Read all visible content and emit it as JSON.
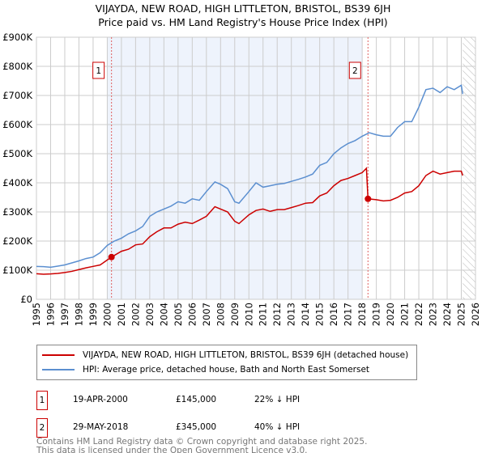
{
  "chart_data": {
    "type": "line",
    "title": "VIJAYDA, NEW ROAD, HIGH LITTLETON, BRISTOL, BS39 6JH",
    "subtitle": "Price paid vs. HM Land Registry's House Price Index (HPI)",
    "xlim": [
      1995,
      2026
    ],
    "ylim": [
      0,
      900000
    ],
    "yticks": [
      {
        "v": 0,
        "label": "£0"
      },
      {
        "v": 100000,
        "label": "£100K"
      },
      {
        "v": 200000,
        "label": "£200K"
      },
      {
        "v": 300000,
        "label": "£300K"
      },
      {
        "v": 400000,
        "label": "£400K"
      },
      {
        "v": 500000,
        "label": "£500K"
      },
      {
        "v": 600000,
        "label": "£600K"
      },
      {
        "v": 700000,
        "label": "£700K"
      },
      {
        "v": 800000,
        "label": "£800K"
      },
      {
        "v": 900000,
        "label": "£900K"
      }
    ],
    "xticks": [
      "1995",
      "1996",
      "1997",
      "1998",
      "1999",
      "2000",
      "2001",
      "2002",
      "2003",
      "2004",
      "2005",
      "2006",
      "2007",
      "2008",
      "2009",
      "2010",
      "2011",
      "2012",
      "2013",
      "2014",
      "2015",
      "2016",
      "2017",
      "2018",
      "2019",
      "2020",
      "2021",
      "2022",
      "2023",
      "2024",
      "2025",
      "2026"
    ],
    "grid": true,
    "shaded_range": [
      2000.0,
      2018.0
    ],
    "hatched_from": 2025.1,
    "series": [
      {
        "name": "VIJAYDA, NEW ROAD, HIGH LITTLETON, BRISTOL, BS39 6JH (detached house)",
        "color": "#cc0000",
        "x": [
          1995,
          1995.5,
          1996,
          1996.5,
          1997,
          1997.5,
          1998,
          1998.5,
          1999,
          1999.5,
          2000,
          2000.3,
          2001,
          2001.5,
          2002,
          2002.5,
          2003,
          2003.5,
          2004,
          2004.5,
          2005,
          2005.5,
          2006,
          2006.5,
          2007,
          2007.6,
          2008,
          2008.5,
          2009,
          2009.3,
          2010,
          2010.5,
          2011,
          2011.5,
          2012,
          2012.5,
          2013,
          2013.5,
          2014,
          2014.5,
          2015,
          2015.5,
          2016,
          2016.5,
          2017,
          2017.5,
          2018,
          2018.3,
          2018.41,
          2019,
          2019.5,
          2020,
          2020.5,
          2021,
          2021.5,
          2022,
          2022.5,
          2023,
          2023.5,
          2024,
          2024.5,
          2025,
          2025.1
        ],
        "y": [
          88000,
          86000,
          87000,
          89000,
          92000,
          96000,
          102000,
          108000,
          113000,
          118000,
          135000,
          145000,
          165000,
          172000,
          187000,
          190000,
          215000,
          232000,
          245000,
          245000,
          258000,
          265000,
          260000,
          272000,
          285000,
          318000,
          310000,
          300000,
          268000,
          260000,
          290000,
          305000,
          310000,
          302000,
          308000,
          308000,
          315000,
          322000,
          330000,
          332000,
          355000,
          365000,
          390000,
          408000,
          415000,
          425000,
          435000,
          450000,
          345000,
          342000,
          338000,
          340000,
          350000,
          365000,
          370000,
          390000,
          425000,
          440000,
          430000,
          435000,
          440000,
          440000,
          425000
        ]
      },
      {
        "name": "HPI: Average price, detached house, Bath and North East Somerset",
        "color": "#5b8fd0",
        "x": [
          1995,
          1995.5,
          1996,
          1996.5,
          1997,
          1997.5,
          1998,
          1998.5,
          1999,
          1999.5,
          2000,
          2000.5,
          2001,
          2001.5,
          2002,
          2002.5,
          2003,
          2003.5,
          2004,
          2004.5,
          2005,
          2005.5,
          2006,
          2006.5,
          2007,
          2007.6,
          2008,
          2008.5,
          2009,
          2009.3,
          2010,
          2010.5,
          2011,
          2011.5,
          2012,
          2012.5,
          2013,
          2013.5,
          2014,
          2014.5,
          2015,
          2015.5,
          2016,
          2016.5,
          2017,
          2017.5,
          2018,
          2018.5,
          2019,
          2019.5,
          2020,
          2020.5,
          2021,
          2021.5,
          2022,
          2022.5,
          2023,
          2023.5,
          2024,
          2024.5,
          2025,
          2025.1
        ],
        "y": [
          113000,
          112000,
          110000,
          114000,
          118000,
          125000,
          132000,
          140000,
          145000,
          160000,
          185000,
          200000,
          210000,
          225000,
          235000,
          250000,
          285000,
          300000,
          310000,
          320000,
          335000,
          330000,
          345000,
          340000,
          370000,
          403000,
          395000,
          380000,
          335000,
          330000,
          370000,
          400000,
          385000,
          390000,
          395000,
          398000,
          405000,
          412000,
          420000,
          430000,
          460000,
          470000,
          500000,
          520000,
          535000,
          545000,
          560000,
          572000,
          565000,
          560000,
          560000,
          590000,
          610000,
          610000,
          660000,
          720000,
          725000,
          710000,
          730000,
          720000,
          735000,
          705000
        ]
      }
    ],
    "annotations": [
      {
        "label": "1",
        "x": 2000.3,
        "y": 145000
      },
      {
        "label": "2",
        "x": 2018.41,
        "y": 345000
      }
    ]
  },
  "legend": {
    "items": [
      {
        "label": "VIJAYDA, NEW ROAD, HIGH LITTLETON, BRISTOL, BS39 6JH (detached house)",
        "color": "#cc0000"
      },
      {
        "label": "HPI: Average price, detached house, Bath and North East Somerset",
        "color": "#5b8fd0"
      }
    ]
  },
  "transactions": [
    {
      "num": "1",
      "date": "19-APR-2000",
      "price": "£145,000",
      "delta": "22% ↓ HPI"
    },
    {
      "num": "2",
      "date": "29-MAY-2018",
      "price": "£345,000",
      "delta": "40% ↓ HPI"
    }
  ],
  "footer": {
    "line1": "Contains HM Land Registry data © Crown copyright and database right 2025.",
    "line2": "This data is licensed under the Open Government Licence v3.0."
  }
}
